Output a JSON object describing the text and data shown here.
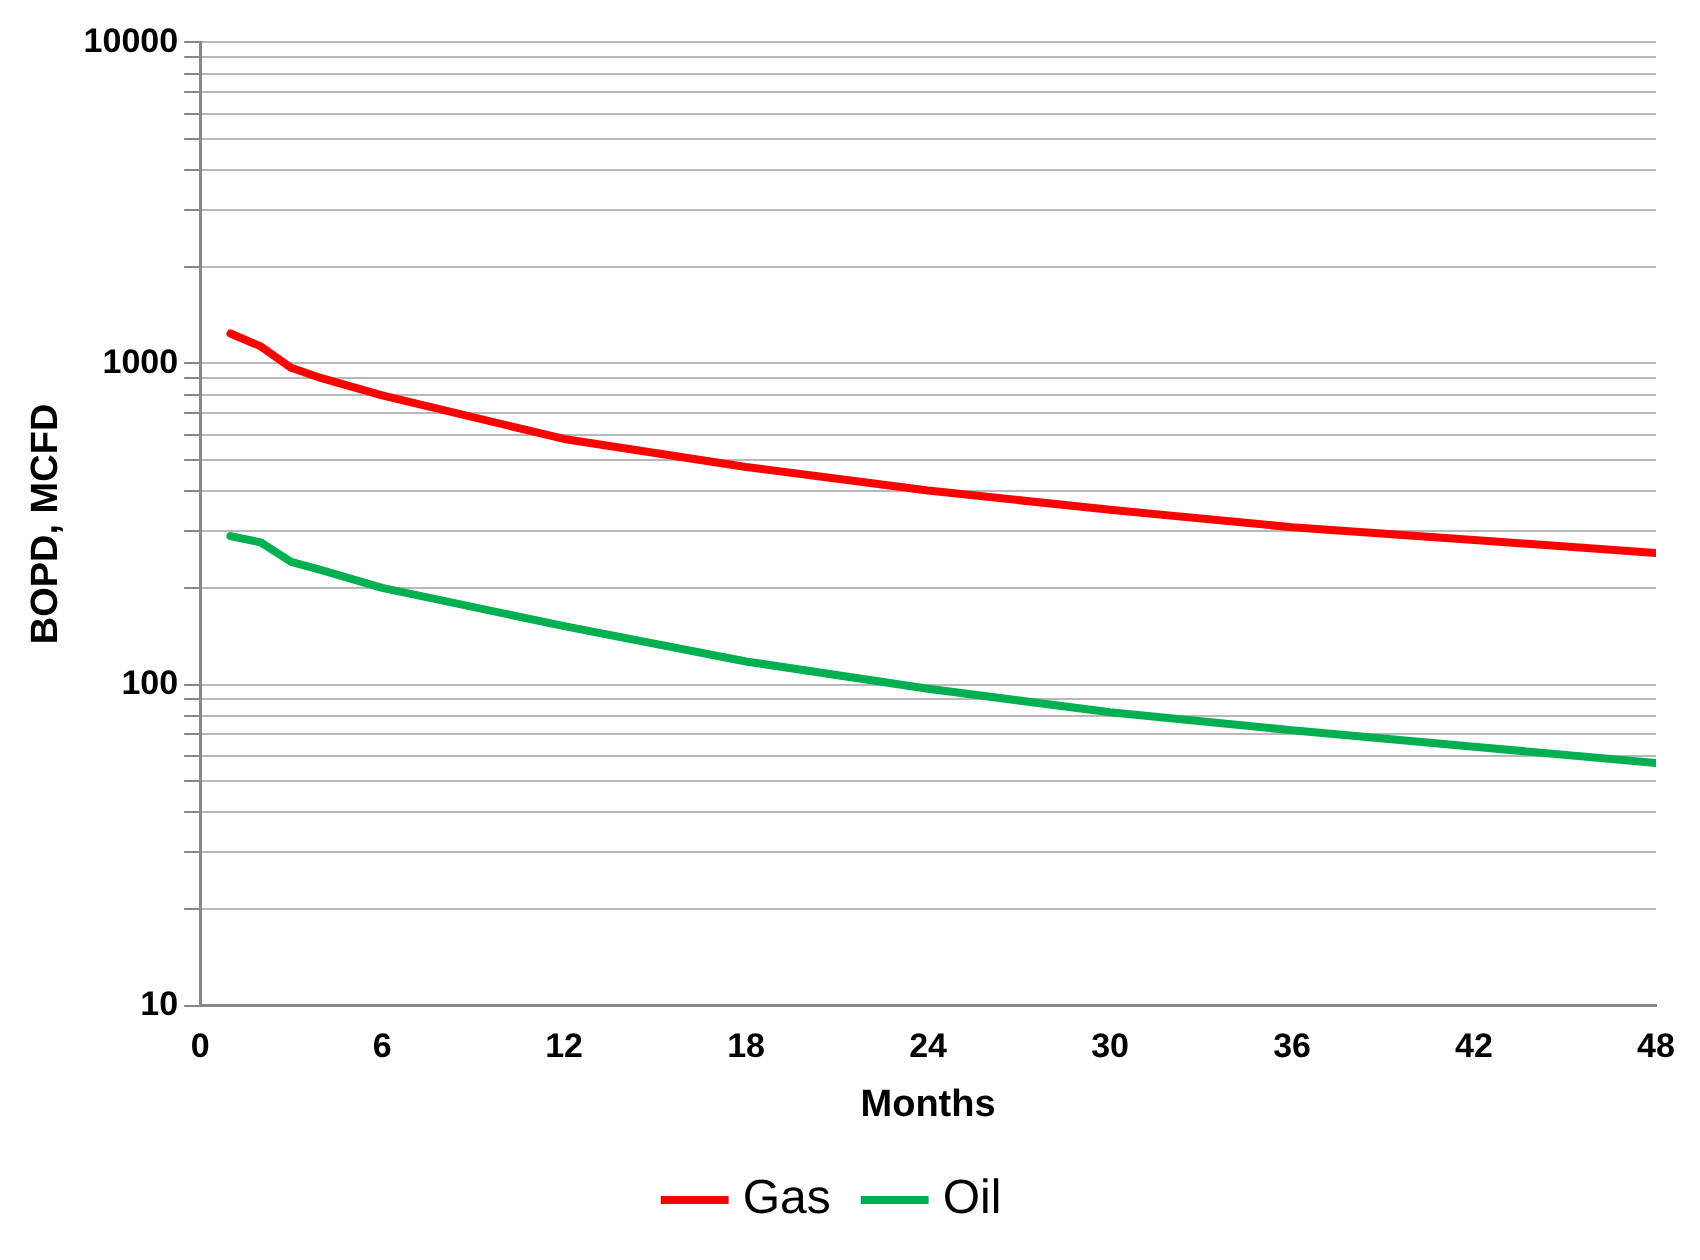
{
  "chart_data": {
    "type": "line",
    "xlabel": "Months",
    "ylabel": "BOPD, MCFD",
    "log": "y",
    "grid": "y",
    "legend": "bottom",
    "marker": "none",
    "line_style": "solid",
    "xlim": [
      0,
      48
    ],
    "xticks": [
      0,
      6,
      12,
      18,
      24,
      30,
      36,
      42,
      48
    ],
    "ylim": [
      10,
      10000
    ],
    "yticks": [
      10,
      {
        "value": 20,
        "label": null
      },
      {
        "value": 30,
        "label": null
      },
      {
        "value": 40,
        "label": null
      },
      {
        "value": 50,
        "label": null
      },
      {
        "value": 60,
        "label": null
      },
      {
        "value": 70,
        "label": null
      },
      {
        "value": 80,
        "label": null
      },
      {
        "value": 90,
        "label": null
      },
      100,
      {
        "value": 200,
        "label": null
      },
      {
        "value": 300,
        "label": null
      },
      {
        "value": 400,
        "label": null
      },
      {
        "value": 500,
        "label": null
      },
      {
        "value": 600,
        "label": null
      },
      {
        "value": 700,
        "label": null
      },
      {
        "value": 800,
        "label": null
      },
      {
        "value": 900,
        "label": null
      },
      1000,
      {
        "value": 2000,
        "label": null
      },
      {
        "value": 3000,
        "label": null
      },
      {
        "value": 4000,
        "label": null
      },
      {
        "value": 5000,
        "label": null
      },
      {
        "value": 6000,
        "label": null
      },
      {
        "value": 7000,
        "label": null
      },
      {
        "value": 8000,
        "label": null
      },
      {
        "value": 9000,
        "label": null
      },
      10000
    ],
    "x": [
      1,
      2,
      3,
      4,
      6,
      12,
      18,
      24,
      30,
      36,
      42,
      48
    ],
    "series": [
      {
        "name": "Gas",
        "color": "#ff0000",
        "values": [
          1240,
          1130,
          970,
          900,
          795,
          582,
          476,
          402,
          350,
          309,
          282,
          257
        ]
      },
      {
        "name": "Oil",
        "color": "#00b050",
        "values": [
          290,
          277,
          241,
          227,
          200,
          152,
          118,
          97,
          82,
          72,
          64,
          57
        ]
      }
    ]
  }
}
